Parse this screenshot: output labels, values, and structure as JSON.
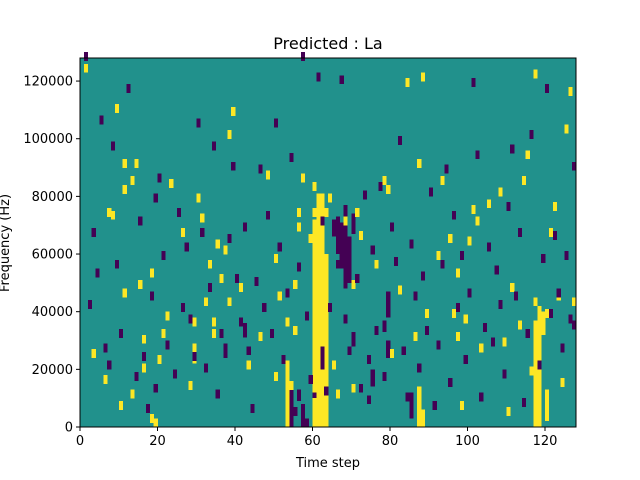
{
  "chart_data": {
    "type": "heatmap",
    "title": "Predicted : La",
    "xlabel": "Time step",
    "ylabel": "Frequency (Hz)",
    "xlim": [
      0,
      128
    ],
    "ylim": [
      0,
      128000
    ],
    "grid": false,
    "legend": "none",
    "x_ticks": [
      0,
      20,
      40,
      60,
      80,
      100,
      120
    ],
    "y_ticks": [
      0,
      20000,
      40000,
      60000,
      80000,
      100000,
      120000
    ],
    "y_tick_labels": [
      "0",
      "20000",
      "40000",
      "60000",
      "80000",
      "100000",
      "120000"
    ],
    "value_levels": [
      -1,
      0,
      1
    ],
    "colors": {
      "low": "#440154",
      "mid": "#21918c",
      "high": "#fde725"
    },
    "background_value": 0,
    "cells": {
      "high": [
        [
          1,
          123000
        ],
        [
          3,
          24000
        ],
        [
          6,
          15000
        ],
        [
          7,
          73000
        ],
        [
          9,
          109000
        ],
        [
          10,
          6000
        ],
        [
          11,
          81000
        ],
        [
          11,
          90000
        ],
        [
          11,
          45000
        ],
        [
          13,
          10000
        ],
        [
          13,
          84000
        ],
        [
          14,
          90000
        ],
        [
          15,
          48000
        ],
        [
          16,
          29000
        ],
        [
          16,
          19000
        ],
        [
          18,
          1500
        ],
        [
          19,
          0
        ],
        [
          20,
          22000
        ],
        [
          22,
          37000
        ],
        [
          23,
          83000
        ],
        [
          26,
          66000
        ],
        [
          28,
          13000
        ],
        [
          29,
          35000
        ],
        [
          29,
          26000
        ],
        [
          30,
          78000
        ],
        [
          31,
          71000
        ],
        [
          32,
          42000
        ],
        [
          33,
          55000
        ],
        [
          34,
          35000
        ],
        [
          34,
          31000
        ],
        [
          35,
          62000
        ],
        [
          36,
          50000
        ],
        [
          37,
          60000
        ],
        [
          38,
          42000
        ],
        [
          38,
          100000
        ],
        [
          39,
          108000
        ],
        [
          48,
          86000
        ],
        [
          50,
          16000
        ],
        [
          50,
          57000
        ],
        [
          51,
          44000
        ],
        [
          53,
          35000
        ],
        [
          54,
          13000
        ],
        [
          55,
          32000
        ],
        [
          55,
          48000
        ],
        [
          56,
          73000
        ],
        [
          56,
          68000
        ],
        [
          57,
          85000
        ],
        [
          59,
          64000
        ],
        [
          60,
          73000
        ],
        [
          60,
          82000
        ],
        [
          61,
          50000
        ],
        [
          62,
          28000
        ],
        [
          63,
          73000
        ],
        [
          64,
          78000
        ],
        [
          65,
          20000
        ],
        [
          66,
          10000
        ],
        [
          68,
          70000
        ],
        [
          70,
          12000
        ],
        [
          71,
          73000
        ],
        [
          72,
          65000
        ],
        [
          76,
          55000
        ],
        [
          79,
          81000
        ],
        [
          80,
          24000
        ],
        [
          82,
          46000
        ],
        [
          86,
          30000
        ],
        [
          87,
          90000
        ],
        [
          88,
          120000
        ],
        [
          89,
          38000
        ],
        [
          92,
          58000
        ],
        [
          93,
          84000
        ],
        [
          95,
          64000
        ],
        [
          96,
          38000
        ],
        [
          97,
          30000
        ],
        [
          98,
          6000
        ],
        [
          99,
          36000
        ],
        [
          100,
          63000
        ],
        [
          101,
          74000
        ],
        [
          102,
          70000
        ],
        [
          103,
          26000
        ],
        [
          108,
          80000
        ],
        [
          109,
          28000
        ],
        [
          110,
          4000
        ],
        [
          111,
          47000
        ],
        [
          113,
          34000
        ],
        [
          114,
          84000
        ],
        [
          115,
          93000
        ],
        [
          116,
          18000
        ],
        [
          117,
          42000
        ],
        [
          118,
          26000
        ],
        [
          120,
          38000
        ],
        [
          121,
          66000
        ],
        [
          122,
          75000
        ],
        [
          123,
          44000
        ],
        [
          124,
          14000
        ],
        [
          125,
          102000
        ],
        [
          127,
          42000
        ],
        [
          126,
          115000
        ],
        [
          117,
          121000
        ],
        [
          105,
          76000
        ],
        [
          97,
          52000
        ],
        [
          84,
          118000
        ],
        [
          78,
          84000
        ],
        [
          70,
          48000
        ],
        [
          46,
          30000
        ],
        [
          43,
          20000
        ],
        [
          41,
          47000
        ],
        [
          21,
          31000
        ],
        [
          18,
          52000
        ],
        [
          8,
          72000
        ]
      ],
      "low": [
        [
          1,
          127000
        ],
        [
          2,
          41000
        ],
        [
          3,
          66000
        ],
        [
          4,
          52000
        ],
        [
          5,
          105000
        ],
        [
          6,
          26000
        ],
        [
          7,
          20000
        ],
        [
          8,
          96000
        ],
        [
          9,
          55000
        ],
        [
          10,
          31000
        ],
        [
          12,
          116000
        ],
        [
          14,
          16000
        ],
        [
          15,
          70000
        ],
        [
          16,
          23000
        ],
        [
          17,
          5000
        ],
        [
          18,
          44000
        ],
        [
          19,
          12000
        ],
        [
          19,
          78000
        ],
        [
          20,
          85000
        ],
        [
          21,
          58000
        ],
        [
          22,
          27000
        ],
        [
          24,
          17000
        ],
        [
          25,
          73000
        ],
        [
          26,
          40000
        ],
        [
          27,
          61000
        ],
        [
          28,
          36000
        ],
        [
          29,
          23000
        ],
        [
          30,
          104000
        ],
        [
          31,
          66000
        ],
        [
          32,
          19000
        ],
        [
          33,
          47000
        ],
        [
          34,
          96000
        ],
        [
          35,
          10000
        ],
        [
          36,
          31000
        ],
        [
          37,
          26000
        ],
        [
          38,
          64000
        ],
        [
          39,
          89000
        ],
        [
          40,
          50000
        ],
        [
          41,
          35000
        ],
        [
          42,
          68000
        ],
        [
          43,
          25000
        ],
        [
          44,
          5000
        ],
        [
          45,
          49000
        ],
        [
          46,
          88000
        ],
        [
          47,
          40000
        ],
        [
          48,
          72000
        ],
        [
          49,
          31000
        ],
        [
          50,
          104000
        ],
        [
          51,
          61000
        ],
        [
          52,
          22000
        ],
        [
          53,
          45000
        ],
        [
          54,
          92000
        ],
        [
          55,
          4000
        ],
        [
          56,
          54000
        ],
        [
          58,
          0
        ],
        [
          57,
          127000
        ],
        [
          58,
          37000
        ],
        [
          59,
          15000
        ],
        [
          61,
          120000
        ],
        [
          62,
          70000
        ],
        [
          63,
          11000
        ],
        [
          64,
          40000
        ],
        [
          66,
          55000
        ],
        [
          67,
          119000
        ],
        [
          67,
          63000
        ],
        [
          68,
          36000
        ],
        [
          69,
          25000
        ],
        [
          70,
          67000
        ],
        [
          71,
          50000
        ],
        [
          72,
          12000
        ],
        [
          73,
          79000
        ],
        [
          74,
          22000
        ],
        [
          75,
          60000
        ],
        [
          76,
          32000
        ],
        [
          77,
          82000
        ],
        [
          78,
          16000
        ],
        [
          79,
          44000
        ],
        [
          80,
          68000
        ],
        [
          81,
          56000
        ],
        [
          82,
          98000
        ],
        [
          83,
          25000
        ],
        [
          84,
          9000
        ],
        [
          85,
          62000
        ],
        [
          86,
          44000
        ],
        [
          87,
          19000
        ],
        [
          88,
          51000
        ],
        [
          89,
          32000
        ],
        [
          90,
          80000
        ],
        [
          91,
          6000
        ],
        [
          92,
          27000
        ],
        [
          93,
          55000
        ],
        [
          94,
          88000
        ],
        [
          95,
          14000
        ],
        [
          96,
          72000
        ],
        [
          97,
          40000
        ],
        [
          98,
          58000
        ],
        [
          99,
          22000
        ],
        [
          100,
          45000
        ],
        [
          101,
          118000
        ],
        [
          102,
          93000
        ],
        [
          103,
          9000
        ],
        [
          104,
          33000
        ],
        [
          105,
          61000
        ],
        [
          106,
          28000
        ],
        [
          107,
          53000
        ],
        [
          108,
          41000
        ],
        [
          109,
          17000
        ],
        [
          110,
          75000
        ],
        [
          111,
          95000
        ],
        [
          112,
          44000
        ],
        [
          113,
          66000
        ],
        [
          114,
          7000
        ],
        [
          115,
          31000
        ],
        [
          116,
          100000
        ],
        [
          118,
          20000
        ],
        [
          119,
          57000
        ],
        [
          120,
          116000
        ],
        [
          121,
          38000
        ],
        [
          122,
          65000
        ],
        [
          123,
          45000
        ],
        [
          124,
          26000
        ],
        [
          125,
          58000
        ],
        [
          126,
          36000
        ],
        [
          127,
          89000
        ],
        [
          127,
          34000
        ]
      ],
      "high_bands": [
        [
          60,
          0,
          72000
        ],
        [
          61,
          0,
          81000
        ],
        [
          62,
          0,
          81000
        ],
        [
          63,
          0,
          60000
        ],
        [
          53,
          0,
          23000
        ],
        [
          88,
          0,
          6000
        ],
        [
          87,
          0,
          14000
        ],
        [
          117,
          0,
          37000
        ],
        [
          118,
          0,
          42000
        ],
        [
          118,
          0,
          14000
        ],
        [
          117,
          10000,
          14000
        ],
        [
          120,
          2000,
          13000
        ],
        [
          119,
          32000,
          40000
        ],
        [
          29,
          22000,
          24000
        ]
      ],
      "low_bands": [
        [
          66,
          60000,
          73000
        ],
        [
          67,
          55000,
          71000
        ],
        [
          68,
          48000,
          77000
        ],
        [
          65,
          66000,
          72000
        ],
        [
          69,
          50000,
          66000
        ],
        [
          70,
          68000,
          74000
        ],
        [
          57,
          0,
          8000
        ],
        [
          56,
          9000,
          13000
        ],
        [
          60,
          10000,
          12000
        ],
        [
          54,
          0,
          13000
        ],
        [
          62,
          20000,
          28000
        ],
        [
          70,
          28000,
          33000
        ],
        [
          74,
          8000,
          11000
        ],
        [
          75,
          14000,
          20000
        ],
        [
          79,
          24000,
          30000
        ],
        [
          85,
          3000,
          12000
        ],
        [
          42,
          31000,
          36000
        ],
        [
          37,
          24000,
          28000
        ],
        [
          78,
          33000,
          37000
        ],
        [
          79,
          38000,
          44000
        ]
      ]
    }
  }
}
